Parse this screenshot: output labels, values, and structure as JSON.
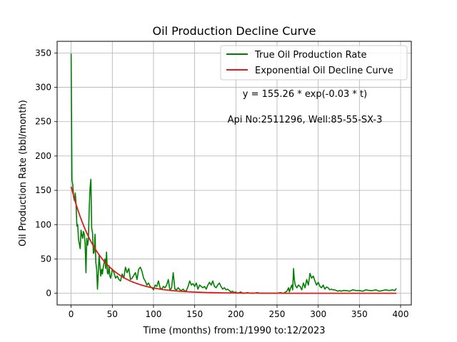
{
  "chart_data": {
    "type": "line",
    "title": "Oil Production Decline Curve",
    "xlabel": "Time (months) from:1/1990 to:12/2023",
    "ylabel": "Oil Production Rate (bbl/month)",
    "xlim": [
      -17,
      413
    ],
    "ylim": [
      -17,
      367
    ],
    "x_ticks": [
      0,
      50,
      100,
      150,
      200,
      250,
      300,
      350,
      400
    ],
    "y_ticks": [
      0,
      50,
      100,
      150,
      200,
      250,
      300,
      350
    ],
    "grid": true,
    "legend_position": "top-right",
    "annotations": [
      "y = 155.26 * exp(-0.03 * t)",
      "Api No:2511296, Well:85-55-SX-3"
    ],
    "series": [
      {
        "name": "True Oil Production Rate",
        "color": "#008000",
        "points": [
          [
            0,
            349
          ],
          [
            1,
            165
          ],
          [
            2,
            158
          ],
          [
            3,
            140
          ],
          [
            4,
            135
          ],
          [
            5,
            146
          ],
          [
            6,
            130
          ],
          [
            7,
            98
          ],
          [
            8,
            100
          ],
          [
            9,
            78
          ],
          [
            10,
            72
          ],
          [
            11,
            65
          ],
          [
            12,
            92
          ],
          [
            13,
            85
          ],
          [
            14,
            80
          ],
          [
            15,
            90
          ],
          [
            16,
            86
          ],
          [
            17,
            72
          ],
          [
            18,
            30
          ],
          [
            19,
            80
          ],
          [
            20,
            70
          ],
          [
            21,
            78
          ],
          [
            22,
            125
          ],
          [
            23,
            153
          ],
          [
            24,
            166
          ],
          [
            25,
            95
          ],
          [
            26,
            88
          ],
          [
            27,
            58
          ],
          [
            28,
            60
          ],
          [
            29,
            86
          ],
          [
            30,
            45
          ],
          [
            31,
            35
          ],
          [
            32,
            6
          ],
          [
            33,
            30
          ],
          [
            34,
            55
          ],
          [
            35,
            40
          ],
          [
            36,
            25
          ],
          [
            37,
            35
          ],
          [
            38,
            28
          ],
          [
            39,
            38
          ],
          [
            40,
            44
          ],
          [
            41,
            50
          ],
          [
            42,
            36
          ],
          [
            43,
            60
          ],
          [
            44,
            30
          ],
          [
            45,
            28
          ],
          [
            46,
            40
          ],
          [
            47,
            25
          ],
          [
            48,
            22
          ],
          [
            49,
            28
          ],
          [
            50,
            35
          ],
          [
            52,
            30
          ],
          [
            54,
            22
          ],
          [
            56,
            25
          ],
          [
            58,
            20
          ],
          [
            60,
            18
          ],
          [
            62,
            28
          ],
          [
            64,
            22
          ],
          [
            66,
            38
          ],
          [
            68,
            30
          ],
          [
            70,
            36
          ],
          [
            72,
            20
          ],
          [
            74,
            22
          ],
          [
            76,
            26
          ],
          [
            78,
            30
          ],
          [
            80,
            20
          ],
          [
            82,
            35
          ],
          [
            84,
            38
          ],
          [
            86,
            32
          ],
          [
            88,
            22
          ],
          [
            90,
            18
          ],
          [
            92,
            12
          ],
          [
            94,
            15
          ],
          [
            96,
            10
          ],
          [
            98,
            8
          ],
          [
            100,
            5
          ],
          [
            102,
            12
          ],
          [
            104,
            10
          ],
          [
            106,
            18
          ],
          [
            108,
            8
          ],
          [
            110,
            6
          ],
          [
            112,
            10
          ],
          [
            114,
            8
          ],
          [
            116,
            12
          ],
          [
            118,
            20
          ],
          [
            120,
            4
          ],
          [
            122,
            8
          ],
          [
            124,
            30
          ],
          [
            126,
            6
          ],
          [
            128,
            5
          ],
          [
            130,
            8
          ],
          [
            132,
            5
          ],
          [
            134,
            4
          ],
          [
            136,
            6
          ],
          [
            138,
            3
          ],
          [
            140,
            4
          ],
          [
            142,
            10
          ],
          [
            144,
            18
          ],
          [
            146,
            12
          ],
          [
            148,
            14
          ],
          [
            150,
            10
          ],
          [
            152,
            15
          ],
          [
            154,
            6
          ],
          [
            156,
            12
          ],
          [
            158,
            10
          ],
          [
            160,
            8
          ],
          [
            162,
            10
          ],
          [
            164,
            6
          ],
          [
            166,
            12
          ],
          [
            168,
            16
          ],
          [
            170,
            12
          ],
          [
            172,
            18
          ],
          [
            174,
            10
          ],
          [
            176,
            8
          ],
          [
            178,
            12
          ],
          [
            180,
            15
          ],
          [
            182,
            10
          ],
          [
            184,
            6
          ],
          [
            186,
            8
          ],
          [
            188,
            5
          ],
          [
            190,
            6
          ],
          [
            192,
            4
          ],
          [
            194,
            2
          ],
          [
            196,
            3
          ],
          [
            198,
            1
          ],
          [
            200,
            2
          ],
          [
            202,
            0
          ],
          [
            204,
            1
          ],
          [
            206,
            2
          ],
          [
            208,
            0
          ],
          [
            210,
            0
          ],
          [
            214,
            1
          ],
          [
            218,
            0
          ],
          [
            222,
            0
          ],
          [
            226,
            1
          ],
          [
            230,
            0
          ],
          [
            234,
            0
          ],
          [
            238,
            0
          ],
          [
            242,
            0
          ],
          [
            246,
            0
          ],
          [
            250,
            0
          ],
          [
            254,
            1
          ],
          [
            258,
            0
          ],
          [
            262,
            3
          ],
          [
            264,
            8
          ],
          [
            265,
            2
          ],
          [
            266,
            6
          ],
          [
            268,
            12
          ],
          [
            269,
            5
          ],
          [
            270,
            36
          ],
          [
            271,
            20
          ],
          [
            272,
            12
          ],
          [
            274,
            8
          ],
          [
            276,
            12
          ],
          [
            278,
            10
          ],
          [
            280,
            5
          ],
          [
            282,
            15
          ],
          [
            284,
            8
          ],
          [
            286,
            20
          ],
          [
            288,
            12
          ],
          [
            290,
            29
          ],
          [
            292,
            22
          ],
          [
            294,
            25
          ],
          [
            296,
            18
          ],
          [
            298,
            12
          ],
          [
            300,
            16
          ],
          [
            302,
            10
          ],
          [
            304,
            8
          ],
          [
            306,
            12
          ],
          [
            308,
            6
          ],
          [
            310,
            9
          ],
          [
            312,
            8
          ],
          [
            314,
            5
          ],
          [
            316,
            6
          ],
          [
            318,
            5
          ],
          [
            320,
            5
          ],
          [
            322,
            4
          ],
          [
            324,
            3
          ],
          [
            326,
            4
          ],
          [
            328,
            3
          ],
          [
            330,
            4
          ],
          [
            334,
            4
          ],
          [
            338,
            3
          ],
          [
            342,
            5
          ],
          [
            346,
            4
          ],
          [
            350,
            4
          ],
          [
            354,
            3
          ],
          [
            358,
            5
          ],
          [
            362,
            4
          ],
          [
            366,
            4
          ],
          [
            370,
            5
          ],
          [
            374,
            3
          ],
          [
            378,
            4
          ],
          [
            382,
            5
          ],
          [
            386,
            4
          ],
          [
            390,
            5
          ],
          [
            393,
            4
          ],
          [
            395,
            7
          ]
        ]
      },
      {
        "name": "Exponential Oil Decline Curve",
        "color": "#e31a1c",
        "model": {
          "a": 155.26,
          "b": -0.03,
          "t_start": 0,
          "t_end": 395
        }
      }
    ]
  }
}
